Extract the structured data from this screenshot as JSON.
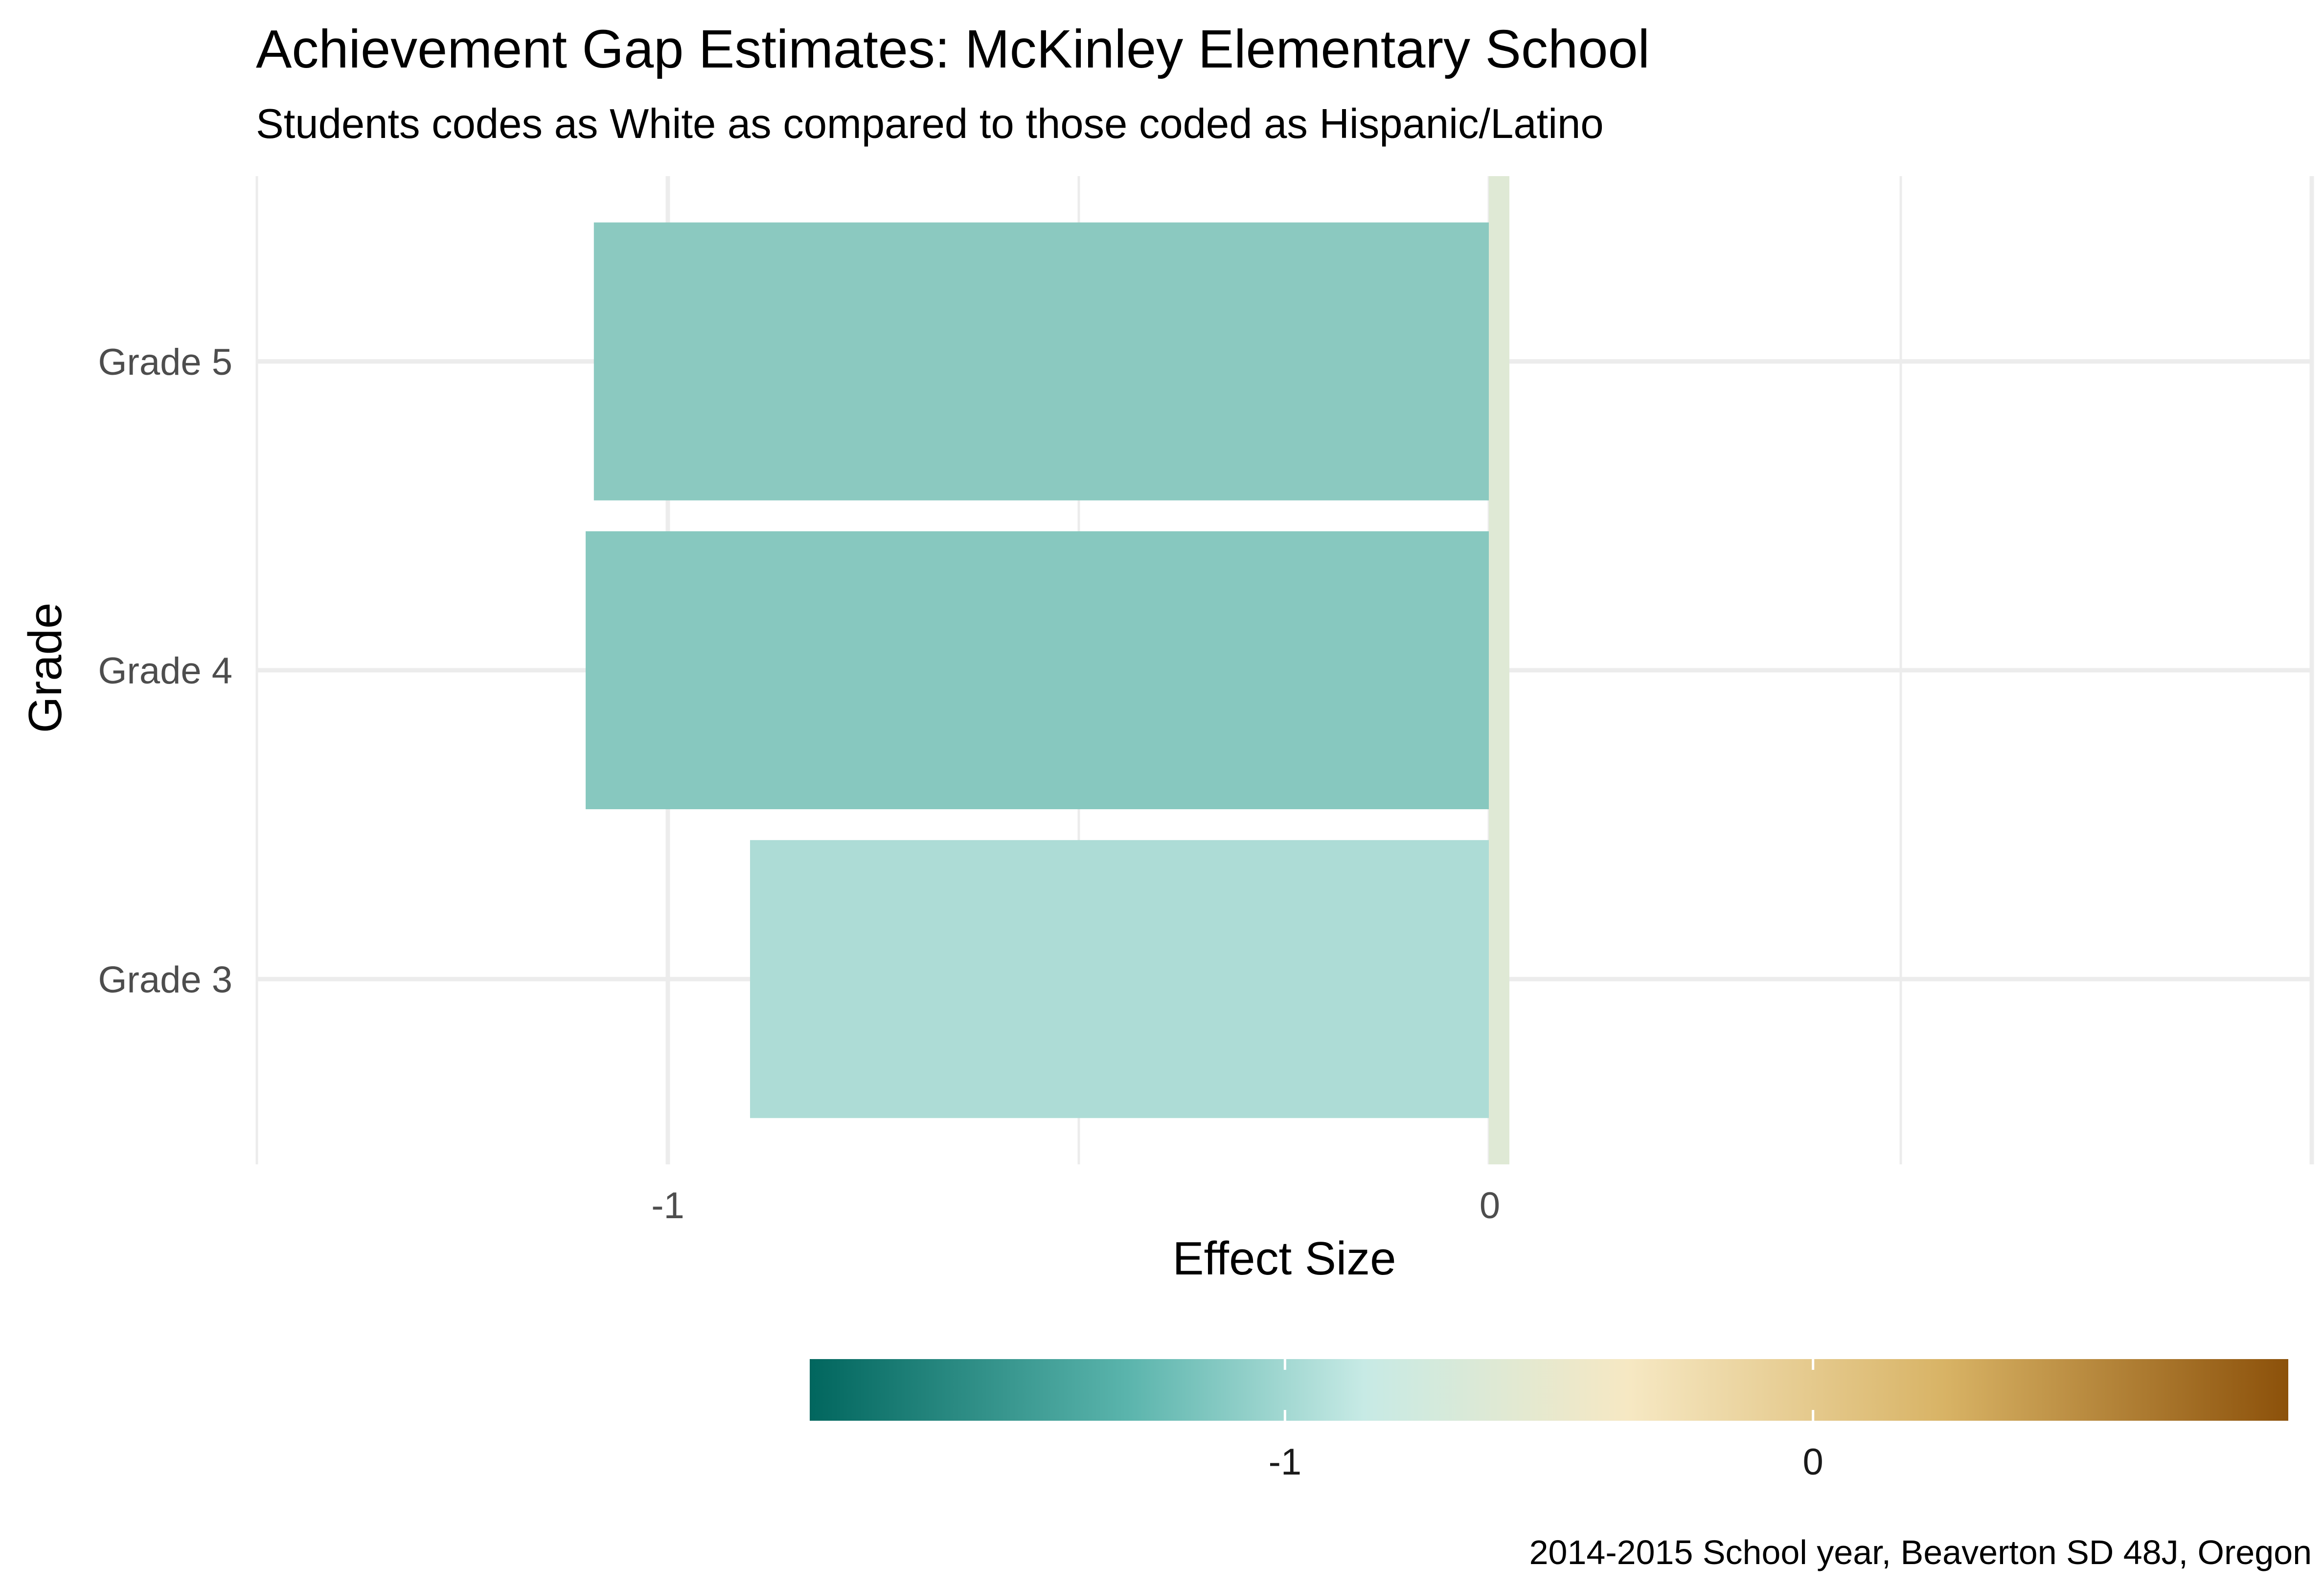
{
  "chart_data": {
    "type": "bar",
    "orientation": "horizontal",
    "title": "Achievement Gap Estimates: McKinley Elementary School",
    "subtitle": "Students codes as White as compared to those coded as Hispanic/Latino",
    "xlabel": "Effect Size",
    "ylabel": "Grade",
    "categories": [
      "Grade 3",
      "Grade 4",
      "Grade 5"
    ],
    "values": [
      -0.9,
      -1.1,
      -1.09
    ],
    "bar_colors": [
      "#addcd6",
      "#87c8bf",
      "#8bc9c0"
    ],
    "reference_line": {
      "value": 0,
      "color": "#dfe9d5"
    },
    "x_ticks": [
      {
        "value": -1,
        "label": "-1"
      },
      {
        "value": 0,
        "label": "0"
      }
    ],
    "xlim": [
      -1.5,
      1
    ],
    "grid": true,
    "legend": {
      "type": "colorbar",
      "position": "bottom",
      "range": [
        -1.9,
        0.9
      ],
      "ticks": [
        {
          "value": -1,
          "label": "-1"
        },
        {
          "value": 0,
          "label": "0"
        }
      ],
      "gradient": [
        {
          "value": -1.9,
          "color": "#01665e"
        },
        {
          "value": -1.3,
          "color": "#5ab4ac"
        },
        {
          "value": -0.85,
          "color": "#c7eae5"
        },
        {
          "value": -0.35,
          "color": "#f6e8c3"
        },
        {
          "value": 0.25,
          "color": "#d8b365"
        },
        {
          "value": 0.9,
          "color": "#8c510a"
        }
      ]
    },
    "caption": "2014-2015 School year, Beaverton SD 48J, Oregon"
  }
}
